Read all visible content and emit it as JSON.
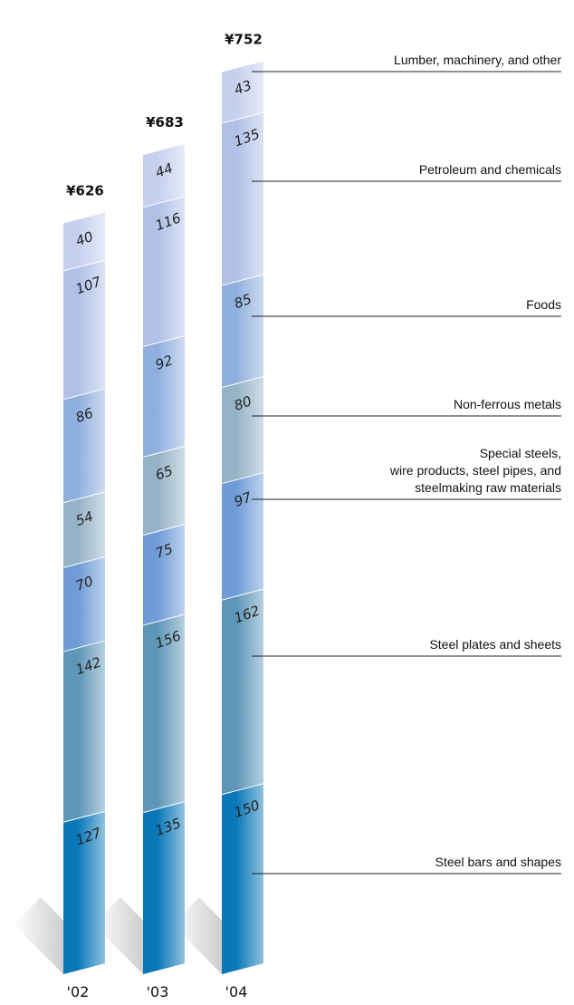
{
  "chart_data": {
    "type": "bar",
    "stacked": true,
    "currency_symbol": "¥",
    "categories": [
      "'02",
      "'03",
      "'04"
    ],
    "totals": [
      626,
      683,
      752
    ],
    "series": [
      {
        "name": "Steel bars and shapes",
        "values": [
          127,
          135,
          150
        ],
        "color": "#0a78b8"
      },
      {
        "name": "Steel plates and sheets",
        "values": [
          142,
          156,
          162
        ],
        "color": "#5e96b8"
      },
      {
        "name": "Special steels, wire products, steel pipes, and steelmaking raw materials",
        "values": [
          70,
          75,
          97
        ],
        "color": "#6f9bd6"
      },
      {
        "name": "Non-ferrous metals",
        "values": [
          54,
          65,
          80
        ],
        "color": "#95b3c6"
      },
      {
        "name": "Foods",
        "values": [
          86,
          92,
          85
        ],
        "color": "#8fb0de"
      },
      {
        "name": "Petroleum and chemicals",
        "values": [
          107,
          116,
          135
        ],
        "color": "#b0c0e6"
      },
      {
        "name": "Lumber, machinery, and other",
        "values": [
          40,
          44,
          43
        ],
        "color": "#c6d0ee"
      }
    ],
    "legend_lines": [
      [
        "Steel bars and shapes"
      ],
      [
        "Steel plates and sheets"
      ],
      [
        "Special steels,",
        "wire products, steel pipes, and",
        "steelmaking raw materials"
      ],
      [
        "Non-ferrous metals"
      ],
      [
        "Foods"
      ],
      [
        "Petroleum and chemicals"
      ],
      [
        "Lumber, machinery, and other"
      ]
    ],
    "legend_placement": "right",
    "grid": false
  }
}
